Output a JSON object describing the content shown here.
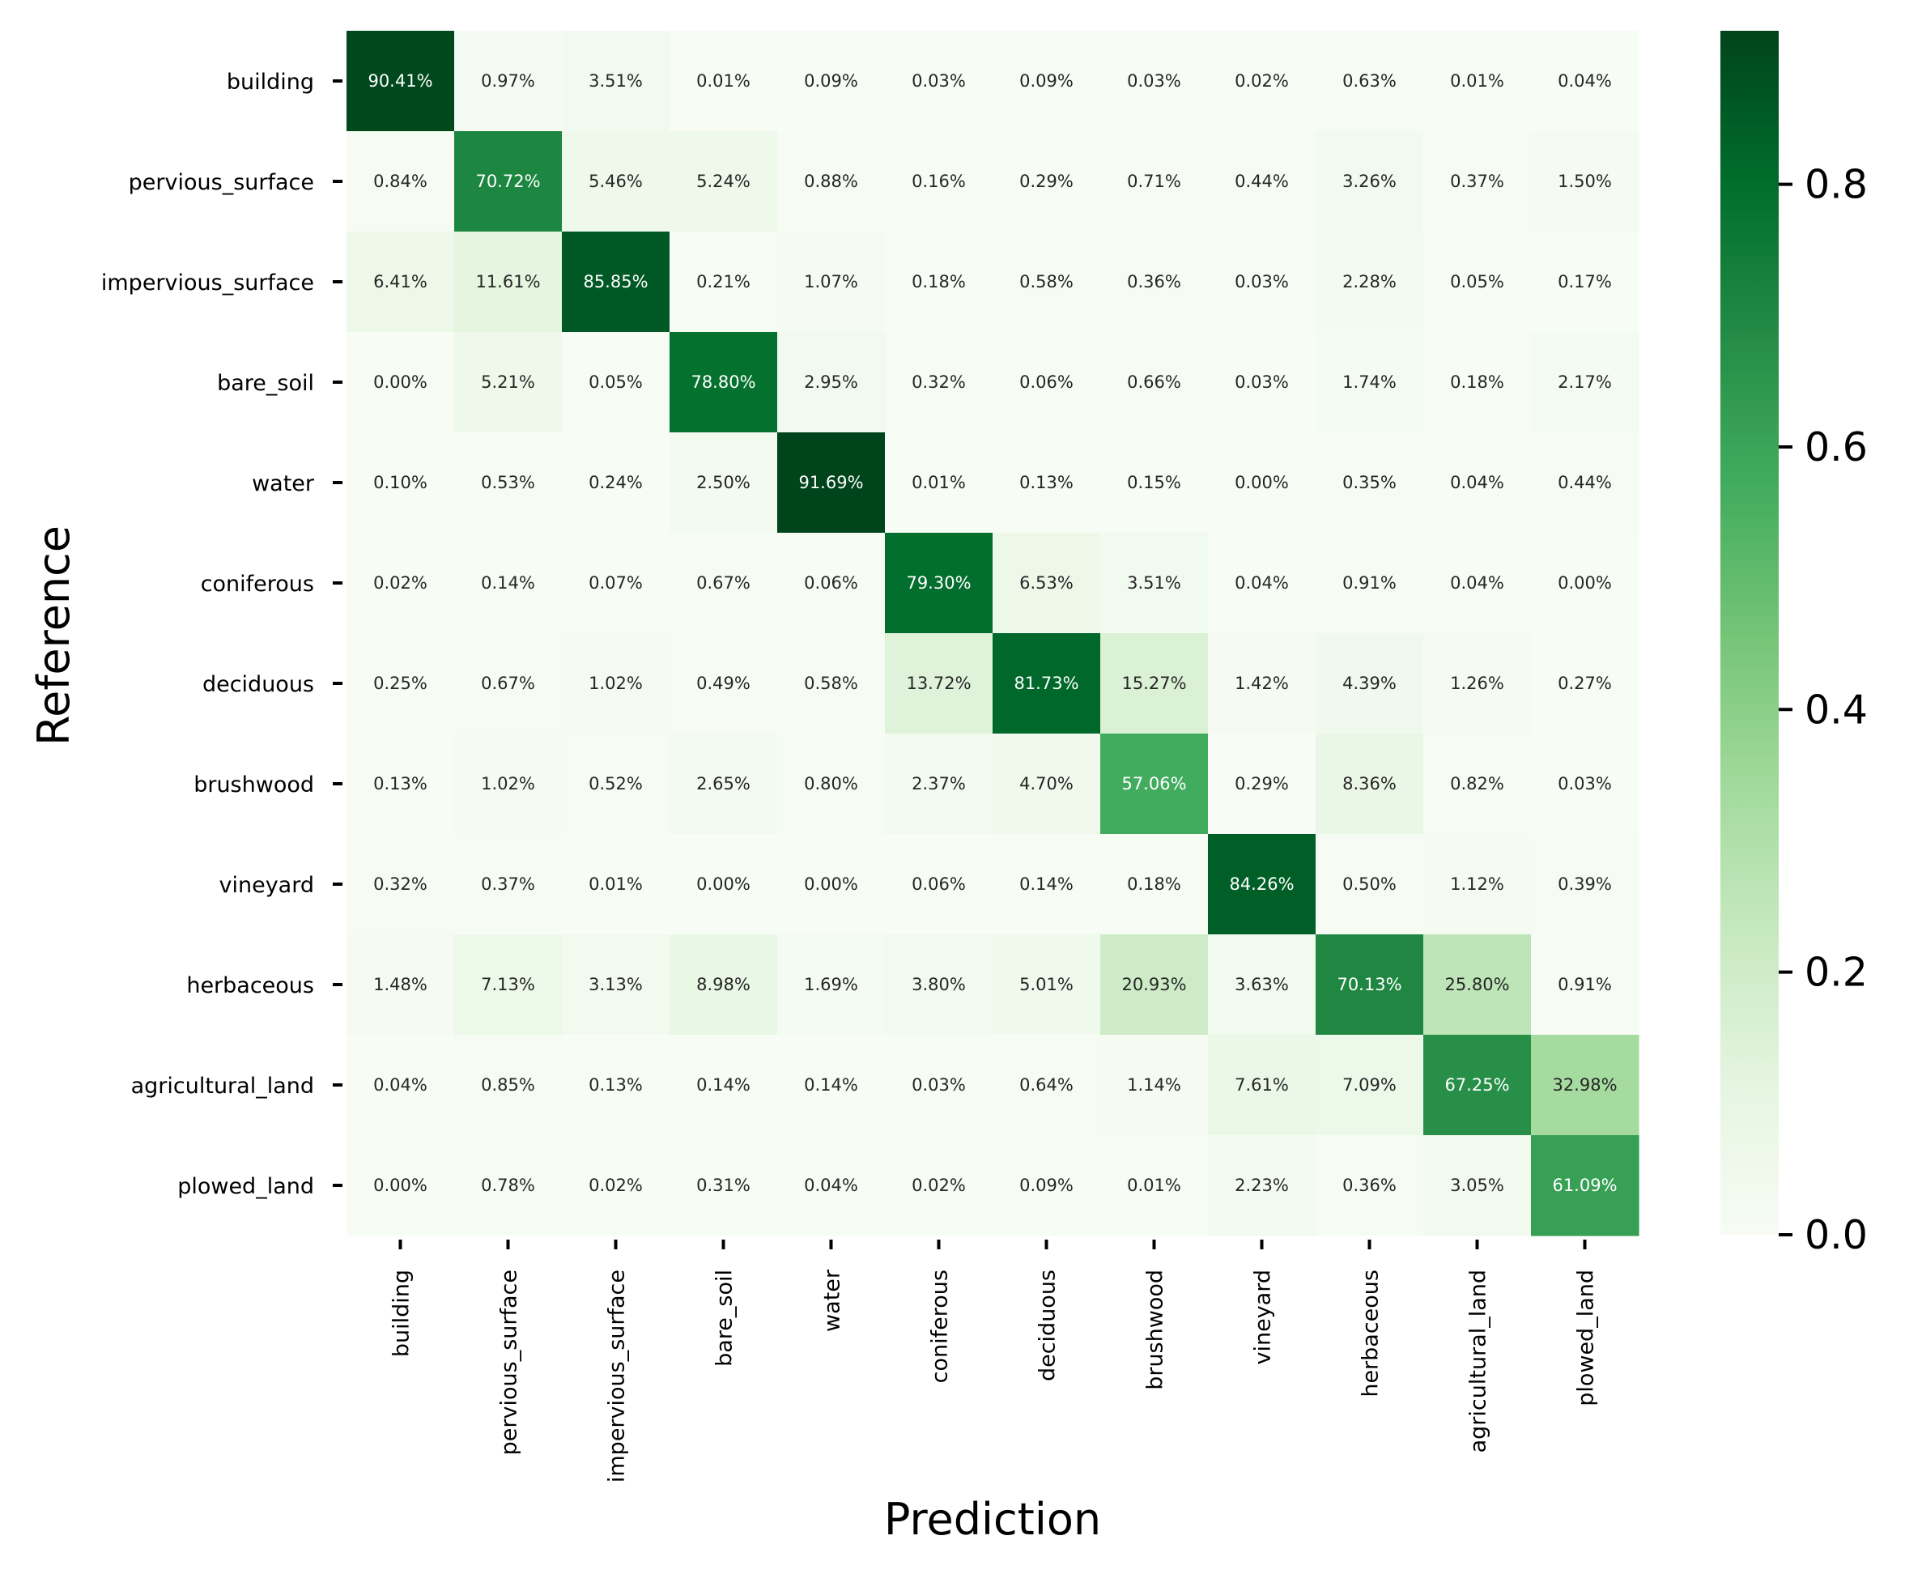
{
  "chart_data": {
    "type": "heatmap",
    "title": "",
    "xlabel": "Prediction",
    "ylabel": "Reference",
    "colormap": "Greens",
    "colors": {
      "low": "#f7fcf5",
      "high": "#00441b"
    },
    "vmin": 0.0,
    "vmax": 0.9169,
    "colorbar_ticks": [
      "0.0",
      "0.2",
      "0.4",
      "0.6",
      "0.8"
    ],
    "colorbar_tick_values": [
      0.0,
      0.2,
      0.4,
      0.6,
      0.8
    ],
    "x_categories": [
      "building",
      "pervious_surface",
      "impervious_surface",
      "bare_soil",
      "water",
      "coniferous",
      "deciduous",
      "brushwood",
      "vineyard",
      "herbaceous",
      "agricultural_land",
      "plowed_land"
    ],
    "y_categories": [
      "building",
      "pervious_surface",
      "impervious_surface",
      "bare_soil",
      "water",
      "coniferous",
      "deciduous",
      "brushwood",
      "vineyard",
      "herbaceous",
      "agricultural_land",
      "plowed_land"
    ],
    "labels": [
      [
        "90.41%",
        "0.97%",
        "3.51%",
        "0.01%",
        "0.09%",
        "0.03%",
        "0.09%",
        "0.03%",
        "0.02%",
        "0.63%",
        "0.01%",
        "0.04%"
      ],
      [
        "0.84%",
        "70.72%",
        "5.46%",
        "5.24%",
        "0.88%",
        "0.16%",
        "0.29%",
        "0.71%",
        "0.44%",
        "3.26%",
        "0.37%",
        "1.50%"
      ],
      [
        "6.41%",
        "11.61%",
        "85.85%",
        "0.21%",
        "1.07%",
        "0.18%",
        "0.58%",
        "0.36%",
        "0.03%",
        "2.28%",
        "0.05%",
        "0.17%"
      ],
      [
        "0.00%",
        "5.21%",
        "0.05%",
        "78.80%",
        "2.95%",
        "0.32%",
        "0.06%",
        "0.66%",
        "0.03%",
        "1.74%",
        "0.18%",
        "2.17%"
      ],
      [
        "0.10%",
        "0.53%",
        "0.24%",
        "2.50%",
        "91.69%",
        "0.01%",
        "0.13%",
        "0.15%",
        "0.00%",
        "0.35%",
        "0.04%",
        "0.44%"
      ],
      [
        "0.02%",
        "0.14%",
        "0.07%",
        "0.67%",
        "0.06%",
        "79.30%",
        "6.53%",
        "3.51%",
        "0.04%",
        "0.91%",
        "0.04%",
        "0.00%"
      ],
      [
        "0.25%",
        "0.67%",
        "1.02%",
        "0.49%",
        "0.58%",
        "13.72%",
        "81.73%",
        "15.27%",
        "1.42%",
        "4.39%",
        "1.26%",
        "0.27%"
      ],
      [
        "0.13%",
        "1.02%",
        "0.52%",
        "2.65%",
        "0.80%",
        "2.37%",
        "4.70%",
        "57.06%",
        "0.29%",
        "8.36%",
        "0.82%",
        "0.03%"
      ],
      [
        "0.32%",
        "0.37%",
        "0.01%",
        "0.00%",
        "0.00%",
        "0.06%",
        "0.14%",
        "0.18%",
        "84.26%",
        "0.50%",
        "1.12%",
        "0.39%"
      ],
      [
        "1.48%",
        "7.13%",
        "3.13%",
        "8.98%",
        "1.69%",
        "3.80%",
        "5.01%",
        "20.93%",
        "3.63%",
        "70.13%",
        "25.80%",
        "0.91%"
      ],
      [
        "0.04%",
        "0.85%",
        "0.13%",
        "0.14%",
        "0.14%",
        "0.03%",
        "0.64%",
        "1.14%",
        "7.61%",
        "7.09%",
        "67.25%",
        "32.98%"
      ],
      [
        "0.00%",
        "0.78%",
        "0.02%",
        "0.31%",
        "0.04%",
        "0.02%",
        "0.09%",
        "0.01%",
        "2.23%",
        "0.36%",
        "3.05%",
        "61.09%"
      ]
    ],
    "legend": "colorbar-right",
    "grid": false
  }
}
